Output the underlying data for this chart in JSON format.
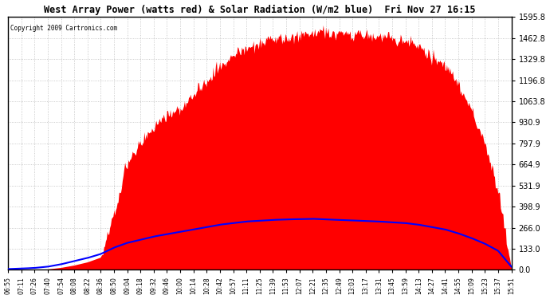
{
  "title": "West Array Power (watts red) & Solar Radiation (W/m2 blue)  Fri Nov 27 16:15",
  "copyright": "Copyright 2009 Cartronics.com",
  "yticks": [
    0.0,
    133.0,
    266.0,
    398.9,
    531.9,
    664.9,
    797.9,
    930.9,
    1063.8,
    1196.8,
    1329.8,
    1462.8,
    1595.8
  ],
  "ymax": 1595.8,
  "ymin": 0.0,
  "bg_color": "#ffffff",
  "plot_bg": "#ffffff",
  "red_color": "#ff0000",
  "blue_color": "#0000ff",
  "grid_color": "#aaaaaa",
  "xtick_labels": [
    "06:55",
    "07:11",
    "07:26",
    "07:40",
    "07:54",
    "08:08",
    "08:22",
    "08:36",
    "08:50",
    "09:04",
    "09:18",
    "09:32",
    "09:46",
    "10:00",
    "10:14",
    "10:28",
    "10:42",
    "10:57",
    "11:11",
    "11:25",
    "11:39",
    "11:53",
    "12:07",
    "12:21",
    "12:35",
    "12:49",
    "13:03",
    "13:17",
    "13:31",
    "13:45",
    "13:59",
    "14:13",
    "14:27",
    "14:41",
    "14:55",
    "15:09",
    "15:23",
    "15:37",
    "15:51"
  ],
  "power_raw": [
    0,
    0,
    0,
    5,
    15,
    30,
    50,
    80,
    350,
    680,
    800,
    900,
    970,
    1020,
    1100,
    1200,
    1280,
    1350,
    1400,
    1430,
    1450,
    1460,
    1480,
    1490,
    1500,
    1495,
    1490,
    1485,
    1470,
    1460,
    1440,
    1410,
    1350,
    1280,
    1180,
    1000,
    800,
    500,
    10
  ],
  "solar_raw": [
    5,
    8,
    12,
    20,
    35,
    55,
    75,
    100,
    140,
    170,
    190,
    210,
    225,
    240,
    255,
    270,
    285,
    295,
    305,
    310,
    315,
    318,
    320,
    322,
    318,
    315,
    312,
    308,
    305,
    300,
    295,
    285,
    270,
    255,
    230,
    200,
    165,
    120,
    20
  ]
}
